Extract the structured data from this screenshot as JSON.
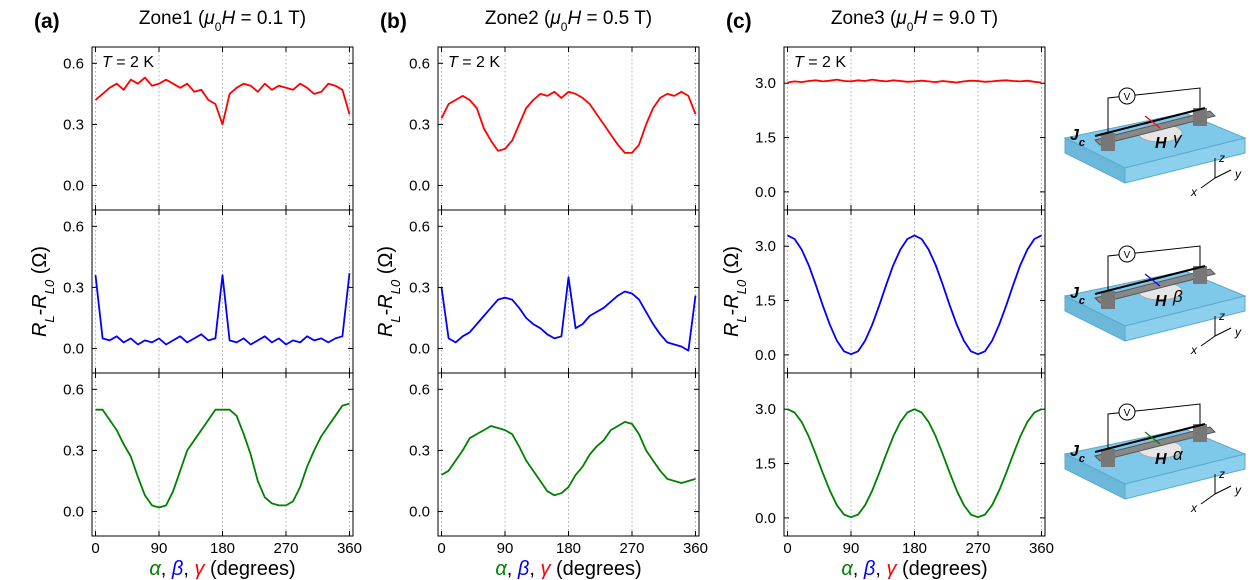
{
  "chart_data": [
    {
      "type": "line",
      "color": "#ff0000",
      "annotation": [
        "T",
        " = 2 K"
      ],
      "xlim": [
        -5,
        365
      ],
      "xticks": [
        0,
        90,
        180,
        270,
        360
      ],
      "ylim": [
        -0.12,
        0.68
      ],
      "yticks": [
        {
          "value": 0,
          "label": "0.0"
        },
        0.3,
        0.6
      ],
      "grid": "x",
      "x": [
        0,
        10,
        20,
        30,
        40,
        50,
        60,
        70,
        80,
        90,
        100,
        110,
        120,
        130,
        140,
        150,
        160,
        170,
        180,
        190,
        200,
        210,
        220,
        230,
        240,
        250,
        260,
        270,
        280,
        290,
        300,
        310,
        320,
        330,
        340,
        350,
        360
      ],
      "values": [
        0.42,
        0.45,
        0.48,
        0.5,
        0.47,
        0.52,
        0.5,
        0.53,
        0.49,
        0.5,
        0.52,
        0.5,
        0.48,
        0.5,
        0.46,
        0.47,
        0.42,
        0.4,
        0.3,
        0.45,
        0.48,
        0.5,
        0.49,
        0.46,
        0.5,
        0.47,
        0.49,
        0.48,
        0.47,
        0.5,
        0.48,
        0.45,
        0.46,
        0.5,
        0.49,
        0.47,
        0.35
      ]
    },
    {
      "type": "line",
      "color": "#0000ff",
      "xlim": [
        -5,
        365
      ],
      "xticks": [
        0,
        90,
        180,
        270,
        360
      ],
      "ylim": [
        -0.12,
        0.68
      ],
      "yticks": [
        {
          "value": 0,
          "label": "0.0"
        },
        0.3,
        0.6
      ],
      "grid": "x",
      "x": [
        0,
        10,
        20,
        30,
        40,
        50,
        60,
        70,
        80,
        90,
        100,
        110,
        120,
        130,
        140,
        150,
        160,
        170,
        180,
        190,
        200,
        210,
        220,
        230,
        240,
        250,
        260,
        270,
        280,
        290,
        300,
        310,
        320,
        330,
        340,
        350,
        360
      ],
      "values": [
        0.36,
        0.05,
        0.04,
        0.06,
        0.03,
        0.05,
        0.02,
        0.04,
        0.03,
        0.05,
        0.02,
        0.04,
        0.06,
        0.03,
        0.05,
        0.07,
        0.04,
        0.05,
        0.36,
        0.04,
        0.03,
        0.05,
        0.02,
        0.04,
        0.06,
        0.03,
        0.05,
        0.02,
        0.04,
        0.03,
        0.06,
        0.04,
        0.05,
        0.03,
        0.05,
        0.06,
        0.37
      ]
    },
    {
      "type": "line",
      "color": "#008000",
      "xlim": [
        -5,
        365
      ],
      "xticks": [
        0,
        90,
        180,
        270,
        360
      ],
      "ylim": [
        -0.12,
        0.68
      ],
      "yticks": [
        {
          "value": 0,
          "label": "0.0"
        },
        0.3,
        0.6
      ],
      "grid": "x",
      "x": [
        0,
        10,
        20,
        30,
        40,
        50,
        60,
        70,
        80,
        90,
        100,
        110,
        120,
        130,
        140,
        150,
        160,
        170,
        180,
        190,
        200,
        210,
        220,
        230,
        240,
        250,
        260,
        270,
        280,
        290,
        300,
        310,
        320,
        330,
        340,
        350,
        360
      ],
      "values": [
        0.5,
        0.5,
        0.45,
        0.4,
        0.33,
        0.27,
        0.17,
        0.08,
        0.03,
        0.02,
        0.03,
        0.1,
        0.2,
        0.3,
        0.35,
        0.4,
        0.45,
        0.5,
        0.5,
        0.5,
        0.47,
        0.38,
        0.28,
        0.15,
        0.07,
        0.04,
        0.03,
        0.03,
        0.05,
        0.12,
        0.22,
        0.3,
        0.37,
        0.42,
        0.47,
        0.52,
        0.53
      ]
    },
    {
      "type": "line",
      "color": "#ff0000",
      "annotation": [
        "T",
        " = 2 K"
      ],
      "xlim": [
        -5,
        365
      ],
      "xticks": [
        0,
        90,
        180,
        270,
        360
      ],
      "ylim": [
        -0.12,
        0.68
      ],
      "yticks": [
        {
          "value": 0,
          "label": "0.0"
        },
        0.3,
        0.6
      ],
      "grid": "x",
      "x": [
        0,
        10,
        20,
        30,
        40,
        50,
        60,
        70,
        80,
        90,
        100,
        110,
        120,
        130,
        140,
        150,
        160,
        170,
        180,
        190,
        200,
        210,
        220,
        230,
        240,
        250,
        260,
        270,
        280,
        290,
        300,
        310,
        320,
        330,
        340,
        350,
        360
      ],
      "values": [
        0.33,
        0.4,
        0.42,
        0.44,
        0.42,
        0.38,
        0.28,
        0.22,
        0.17,
        0.18,
        0.22,
        0.3,
        0.38,
        0.42,
        0.45,
        0.44,
        0.46,
        0.43,
        0.46,
        0.45,
        0.43,
        0.4,
        0.35,
        0.3,
        0.25,
        0.2,
        0.16,
        0.16,
        0.2,
        0.3,
        0.38,
        0.43,
        0.45,
        0.44,
        0.46,
        0.44,
        0.35
      ]
    },
    {
      "type": "line",
      "color": "#0000ff",
      "xlim": [
        -5,
        365
      ],
      "xticks": [
        0,
        90,
        180,
        270,
        360
      ],
      "ylim": [
        -0.12,
        0.68
      ],
      "yticks": [
        {
          "value": 0,
          "label": "0.0"
        },
        0.3,
        0.6
      ],
      "grid": "x",
      "x": [
        0,
        10,
        20,
        30,
        40,
        50,
        60,
        70,
        80,
        90,
        100,
        110,
        120,
        130,
        140,
        150,
        160,
        170,
        180,
        190,
        200,
        210,
        220,
        230,
        240,
        250,
        260,
        270,
        280,
        290,
        300,
        310,
        320,
        330,
        340,
        350,
        360
      ],
      "values": [
        0.3,
        0.05,
        0.03,
        0.06,
        0.08,
        0.12,
        0.16,
        0.2,
        0.24,
        0.25,
        0.24,
        0.2,
        0.15,
        0.12,
        0.1,
        0.07,
        0.05,
        0.06,
        0.35,
        0.1,
        0.12,
        0.16,
        0.18,
        0.2,
        0.23,
        0.26,
        0.28,
        0.27,
        0.24,
        0.18,
        0.12,
        0.07,
        0.03,
        0.02,
        0.01,
        -0.01,
        0.26
      ]
    },
    {
      "type": "line",
      "color": "#008000",
      "xlim": [
        -5,
        365
      ],
      "xticks": [
        0,
        90,
        180,
        270,
        360
      ],
      "ylim": [
        -0.12,
        0.68
      ],
      "yticks": [
        {
          "value": 0,
          "label": "0.0"
        },
        0.3,
        0.6
      ],
      "grid": "x",
      "x": [
        0,
        10,
        20,
        30,
        40,
        50,
        60,
        70,
        80,
        90,
        100,
        110,
        120,
        130,
        140,
        150,
        160,
        170,
        180,
        190,
        200,
        210,
        220,
        230,
        240,
        250,
        260,
        270,
        280,
        290,
        300,
        310,
        320,
        330,
        340,
        350,
        360
      ],
      "values": [
        0.18,
        0.2,
        0.25,
        0.3,
        0.36,
        0.38,
        0.4,
        0.42,
        0.41,
        0.4,
        0.38,
        0.32,
        0.25,
        0.2,
        0.15,
        0.1,
        0.08,
        0.09,
        0.12,
        0.18,
        0.22,
        0.28,
        0.32,
        0.35,
        0.4,
        0.42,
        0.44,
        0.43,
        0.38,
        0.3,
        0.25,
        0.2,
        0.16,
        0.15,
        0.14,
        0.15,
        0.16
      ]
    },
    {
      "type": "line",
      "color": "#ff0000",
      "annotation": [
        "T",
        " = 2 K"
      ],
      "xlim": [
        -5,
        365
      ],
      "xticks": [
        0,
        90,
        180,
        270,
        360
      ],
      "ylim": [
        -0.5,
        4.0
      ],
      "yticks": [
        {
          "value": 0,
          "label": "0.0"
        },
        1.5,
        {
          "value": 3,
          "label": "3.0"
        }
      ],
      "grid": "x",
      "x": [
        0,
        10,
        20,
        30,
        40,
        50,
        60,
        70,
        80,
        90,
        100,
        110,
        120,
        130,
        140,
        150,
        160,
        170,
        180,
        190,
        200,
        210,
        220,
        230,
        240,
        250,
        260,
        270,
        280,
        290,
        300,
        310,
        320,
        330,
        340,
        350,
        360
      ],
      "values": [
        3.02,
        3.05,
        3.03,
        3.06,
        3.08,
        3.05,
        3.07,
        3.1,
        3.06,
        3.05,
        3.08,
        3.06,
        3.1,
        3.07,
        3.05,
        3.08,
        3.06,
        3.04,
        3.05,
        3.07,
        3.05,
        3.03,
        3.06,
        3.04,
        3.02,
        3.05,
        3.07,
        3.06,
        3.04,
        3.05,
        3.07,
        3.08,
        3.06,
        3.05,
        3.07,
        3.04,
        3.02
      ]
    },
    {
      "type": "line",
      "color": "#0000ff",
      "xlim": [
        -5,
        365
      ],
      "xticks": [
        0,
        90,
        180,
        270,
        360
      ],
      "ylim": [
        -0.5,
        4.0
      ],
      "yticks": [
        {
          "value": 0,
          "label": "0.0"
        },
        1.5,
        {
          "value": 3,
          "label": "3.0"
        }
      ],
      "grid": "x",
      "x": [
        0,
        10,
        20,
        30,
        40,
        50,
        60,
        70,
        80,
        90,
        100,
        110,
        120,
        130,
        140,
        150,
        160,
        170,
        180,
        190,
        200,
        210,
        220,
        230,
        240,
        250,
        260,
        270,
        280,
        290,
        300,
        310,
        320,
        330,
        340,
        350,
        360
      ],
      "values": [
        3.3,
        3.2,
        2.91,
        2.48,
        1.94,
        1.36,
        0.83,
        0.39,
        0.1,
        0.02,
        0.1,
        0.39,
        0.83,
        1.36,
        1.94,
        2.48,
        2.91,
        3.2,
        3.3,
        3.2,
        2.91,
        2.48,
        1.94,
        1.36,
        0.83,
        0.39,
        0.1,
        0.02,
        0.1,
        0.39,
        0.83,
        1.36,
        1.94,
        2.48,
        2.91,
        3.2,
        3.3
      ]
    },
    {
      "type": "line",
      "color": "#008000",
      "xlim": [
        -5,
        365
      ],
      "xticks": [
        0,
        90,
        180,
        270,
        360
      ],
      "ylim": [
        -0.5,
        4.0
      ],
      "yticks": [
        {
          "value": 0,
          "label": "0.0"
        },
        1.5,
        {
          "value": 3,
          "label": "3.0"
        }
      ],
      "grid": "x",
      "x": [
        0,
        10,
        20,
        30,
        40,
        50,
        60,
        70,
        80,
        90,
        100,
        110,
        120,
        130,
        140,
        150,
        160,
        170,
        180,
        190,
        200,
        210,
        220,
        230,
        240,
        250,
        260,
        270,
        280,
        290,
        300,
        310,
        320,
        330,
        340,
        350,
        360
      ],
      "values": [
        3.0,
        2.91,
        2.65,
        2.25,
        1.76,
        1.24,
        0.75,
        0.35,
        0.09,
        0.02,
        0.09,
        0.35,
        0.75,
        1.24,
        1.76,
        2.25,
        2.65,
        2.91,
        3.0,
        2.91,
        2.65,
        2.25,
        1.76,
        1.24,
        0.75,
        0.35,
        0.09,
        0.02,
        0.09,
        0.35,
        0.75,
        1.24,
        1.76,
        2.25,
        2.65,
        2.91,
        3.0
      ]
    }
  ],
  "panels": [
    {
      "label": "(a)",
      "title": [
        "Zone1 (",
        "μ",
        "0",
        "H",
        " = 0.1 T)"
      ],
      "y_label": [
        "R",
        "L",
        "-",
        "R",
        "L0",
        " (Ω)"
      ],
      "x_label": [
        {
          "text": "α",
          "color": "#008000"
        },
        {
          "text": ", "
        },
        {
          "text": "β",
          "color": "#0000ff"
        },
        {
          "text": ", "
        },
        {
          "text": "γ",
          "color": "#ff0000"
        },
        {
          "text": " (degrees)"
        }
      ]
    },
    {
      "label": "(b)",
      "title": [
        "Zone2 (",
        "μ",
        "0",
        "H",
        " = 0.5 T)"
      ],
      "y_label": [
        "R",
        "L",
        "-",
        "R",
        "L0",
        " (Ω)"
      ],
      "x_label": [
        {
          "text": "α",
          "color": "#008000"
        },
        {
          "text": ", "
        },
        {
          "text": "β",
          "color": "#0000ff"
        },
        {
          "text": ", "
        },
        {
          "text": "γ",
          "color": "#ff0000"
        },
        {
          "text": " (degrees)"
        }
      ]
    },
    {
      "label": "(c)",
      "title": [
        "Zone3 (",
        "μ",
        "0",
        "H",
        " = 9.0 T)"
      ],
      "y_label": [
        "R",
        "L",
        "-",
        "R",
        "L0",
        " (Ω)"
      ],
      "x_label": [
        {
          "text": "α",
          "color": "#008000"
        },
        {
          "text": ", "
        },
        {
          "text": "β",
          "color": "#0000ff"
        },
        {
          "text": ", "
        },
        {
          "text": "γ",
          "color": "#ff0000"
        },
        {
          "text": " (degrees)"
        }
      ]
    }
  ],
  "insets": [
    {
      "meter": "V",
      "current": [
        "J",
        "c"
      ],
      "field": "H",
      "angle": "γ",
      "angle_color": "#ff0000",
      "axes": [
        "z",
        "x",
        "y"
      ]
    },
    {
      "meter": "V",
      "current": [
        "J",
        "c"
      ],
      "field": "H",
      "angle": "β",
      "angle_color": "#0000ff",
      "axes": [
        "z",
        "x",
        "y"
      ]
    },
    {
      "meter": "V",
      "current": [
        "J",
        "c"
      ],
      "field": "H",
      "angle": "α",
      "angle_color": "#008000",
      "axes": [
        "z",
        "x",
        "y"
      ]
    }
  ]
}
